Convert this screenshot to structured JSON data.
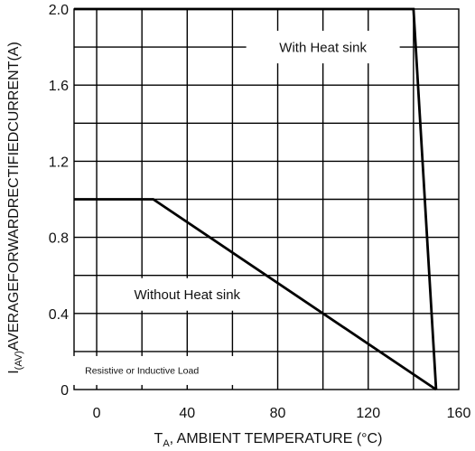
{
  "chart_data": {
    "type": "line",
    "title": "",
    "xlabel": "T",
    "xlabel_sub": "A",
    "xlabel_rest": ", AMBIENT TEMPERATURE (°C)",
    "ylabel": "I",
    "ylabel_sub": "(AV)",
    "ylabel_rest": "AVERAGEFORWARDRECTIFIEDCURRENT(A)",
    "xlim": [
      -10,
      160
    ],
    "ylim": [
      0,
      2.0
    ],
    "x_ticks": [
      0,
      40,
      80,
      120,
      160
    ],
    "x_tick_labels": [
      "0",
      "40",
      "80",
      "120",
      "160"
    ],
    "y_ticks": [
      0,
      0.4,
      0.8,
      1.2,
      1.6,
      2.0
    ],
    "y_tick_labels": [
      "0",
      "0.4",
      "0.8",
      "1.2",
      "1.6",
      "2.0"
    ],
    "x_grid": [
      0,
      20,
      40,
      60,
      80,
      100,
      120,
      140
    ],
    "y_grid": [
      0.2,
      0.4,
      0.6,
      0.8,
      1.0,
      1.2,
      1.4,
      1.6,
      1.8
    ],
    "grid": true,
    "series": [
      {
        "name": "With Heat sink",
        "x": [
          -10,
          140,
          150
        ],
        "y": [
          2.0,
          2.0,
          0
        ]
      },
      {
        "name": "Without Heat sink",
        "x": [
          -10,
          25,
          150
        ],
        "y": [
          1.0,
          1.0,
          0
        ]
      }
    ],
    "annotations": [
      {
        "text": "With Heat sink",
        "x": 100,
        "y": 1.8
      },
      {
        "text": "Without Heat sink",
        "x": 40,
        "y": 0.5
      },
      {
        "text": "Resistive or Inductive Load",
        "x": 20,
        "y": 0.1
      }
    ]
  }
}
